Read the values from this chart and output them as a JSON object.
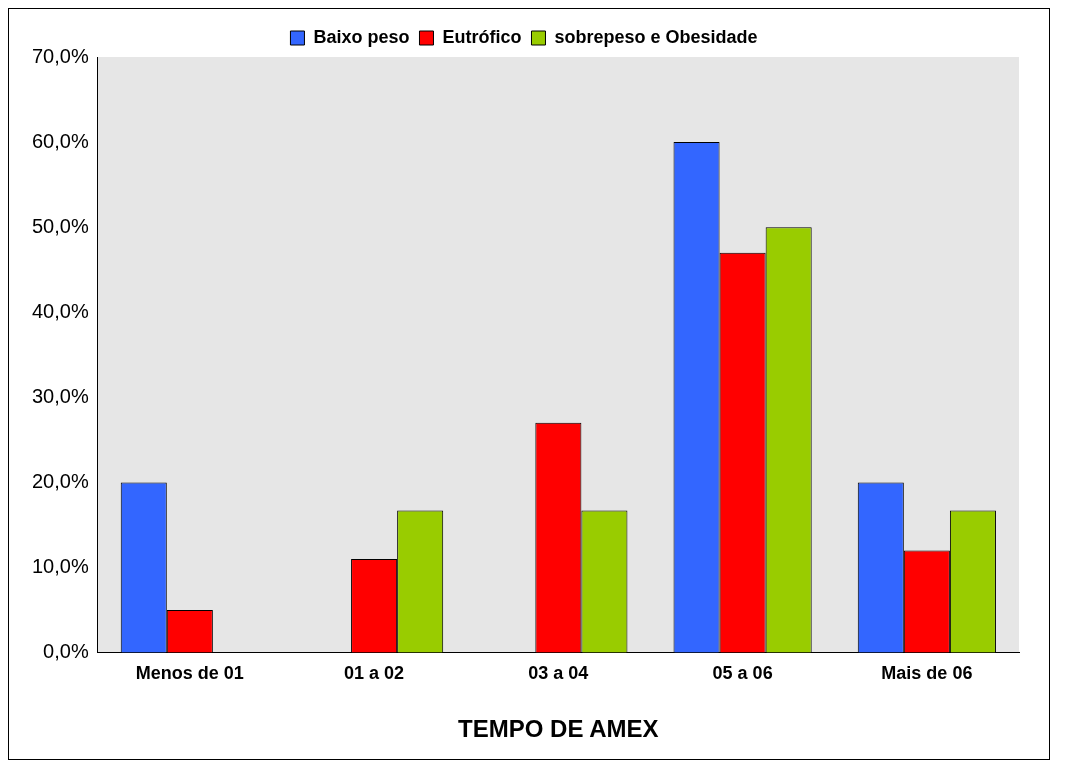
{
  "chart_data": {
    "type": "bar",
    "xlabel": "TEMPO DE AMEX",
    "categories": [
      "Menos de 01",
      "01 a 02",
      "03 a 04",
      "05 a 06",
      "Mais de 06"
    ],
    "series": [
      {
        "name": "Baixo peso",
        "color": "#3366ff",
        "values": [
          20,
          0,
          0,
          60,
          20
        ]
      },
      {
        "name": "Eutrófico",
        "color": "#ff0000",
        "values": [
          5,
          11,
          27,
          47,
          12
        ]
      },
      {
        "name": "sobrepeso e Obesidade",
        "color": "#99cc00",
        "values": [
          0,
          16.7,
          16.7,
          50,
          16.7
        ]
      }
    ],
    "ylim": [
      0,
      70
    ],
    "yticks": [
      {
        "value": 0,
        "label": "0,0%"
      },
      {
        "value": 10,
        "label": "10,0%"
      },
      {
        "value": 20,
        "label": "20,0%"
      },
      {
        "value": 30,
        "label": "30,0%"
      },
      {
        "value": 40,
        "label": "40,0%"
      },
      {
        "value": 50,
        "label": "50,0%"
      },
      {
        "value": 60,
        "label": "60,0%"
      },
      {
        "value": 70,
        "label": "70,0%"
      }
    ],
    "grid": false,
    "legend": "top"
  }
}
